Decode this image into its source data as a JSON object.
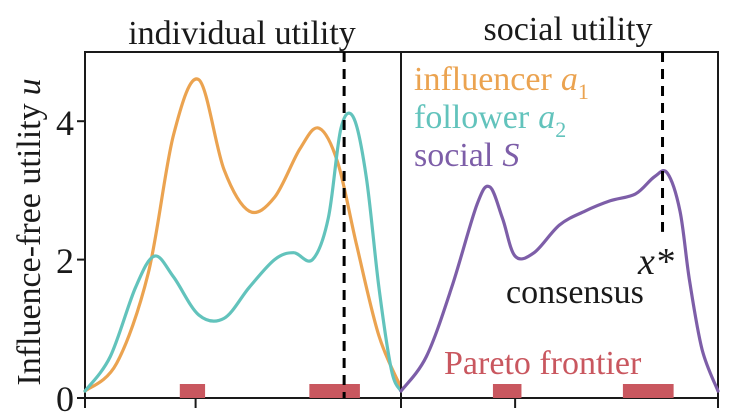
{
  "chart_data": [
    {
      "type": "line",
      "title": "individual utility",
      "ylabel": "Influence-free utility",
      "ylabel_symbol": "u",
      "xlim": [
        0,
        1
      ],
      "ylim": [
        0,
        5
      ],
      "yticks": [
        0,
        2,
        4
      ],
      "ytick_labels": [
        "0",
        "2",
        "4"
      ],
      "xticks": [
        0.35
      ],
      "series": [
        {
          "name": "influencer a1",
          "color": "#EBA350",
          "x": [
            0,
            0.1,
            0.2,
            0.28,
            0.36,
            0.44,
            0.52,
            0.6,
            0.68,
            0.74,
            0.8,
            0.86,
            0.93,
            1.0
          ],
          "y": [
            0.1,
            0.5,
            1.8,
            3.8,
            4.6,
            3.3,
            2.7,
            2.9,
            3.6,
            3.9,
            3.4,
            2.2,
            0.9,
            0.15
          ]
        },
        {
          "name": "follower a2",
          "color": "#62C3BC",
          "x": [
            0,
            0.08,
            0.16,
            0.22,
            0.28,
            0.36,
            0.44,
            0.52,
            0.6,
            0.66,
            0.72,
            0.77,
            0.81,
            0.85,
            0.89,
            0.93,
            0.97,
            1.0
          ],
          "y": [
            0.1,
            0.6,
            1.6,
            2.05,
            1.75,
            1.2,
            1.15,
            1.6,
            2.0,
            2.1,
            2.0,
            2.6,
            3.9,
            4.05,
            3.2,
            1.6,
            0.4,
            0.1
          ]
        }
      ],
      "dashed_line_x": 0.82,
      "pareto_intervals": [
        [
          0.3,
          0.38
        ],
        [
          0.71,
          0.87
        ]
      ]
    },
    {
      "type": "line",
      "title": "social utility",
      "xlim": [
        0,
        1
      ],
      "ylim": [
        0,
        5
      ],
      "xticks": [
        0.36
      ],
      "series": [
        {
          "name": "social S",
          "color": "#7D5EA8",
          "x": [
            0,
            0.08,
            0.16,
            0.24,
            0.28,
            0.32,
            0.36,
            0.42,
            0.5,
            0.58,
            0.66,
            0.74,
            0.8,
            0.84,
            0.88,
            0.91,
            0.95,
            1.0
          ],
          "y": [
            0.1,
            0.6,
            1.6,
            2.8,
            3.05,
            2.6,
            2.05,
            2.1,
            2.5,
            2.7,
            2.85,
            2.95,
            3.2,
            3.25,
            2.7,
            1.7,
            0.7,
            0.1
          ]
        }
      ],
      "optimum_label": "x*",
      "consensus_label": "consensus",
      "pareto_label": "Pareto frontier",
      "dashed_line_x": 0.825,
      "pareto_intervals": [
        [
          0.29,
          0.38
        ],
        [
          0.7,
          0.86
        ]
      ]
    }
  ],
  "legend": [
    {
      "label": "influencer",
      "symbol": "a",
      "sub": "1",
      "color": "#EBA350"
    },
    {
      "label": "follower",
      "symbol": "a",
      "sub": "2",
      "color": "#62C3BC"
    },
    {
      "label": "social",
      "symbol": "S",
      "sub": "",
      "color": "#7D5EA8"
    }
  ],
  "colors": {
    "pareto": "#C9575F",
    "axis": "#1a1a1a",
    "dashed": "#000000"
  }
}
